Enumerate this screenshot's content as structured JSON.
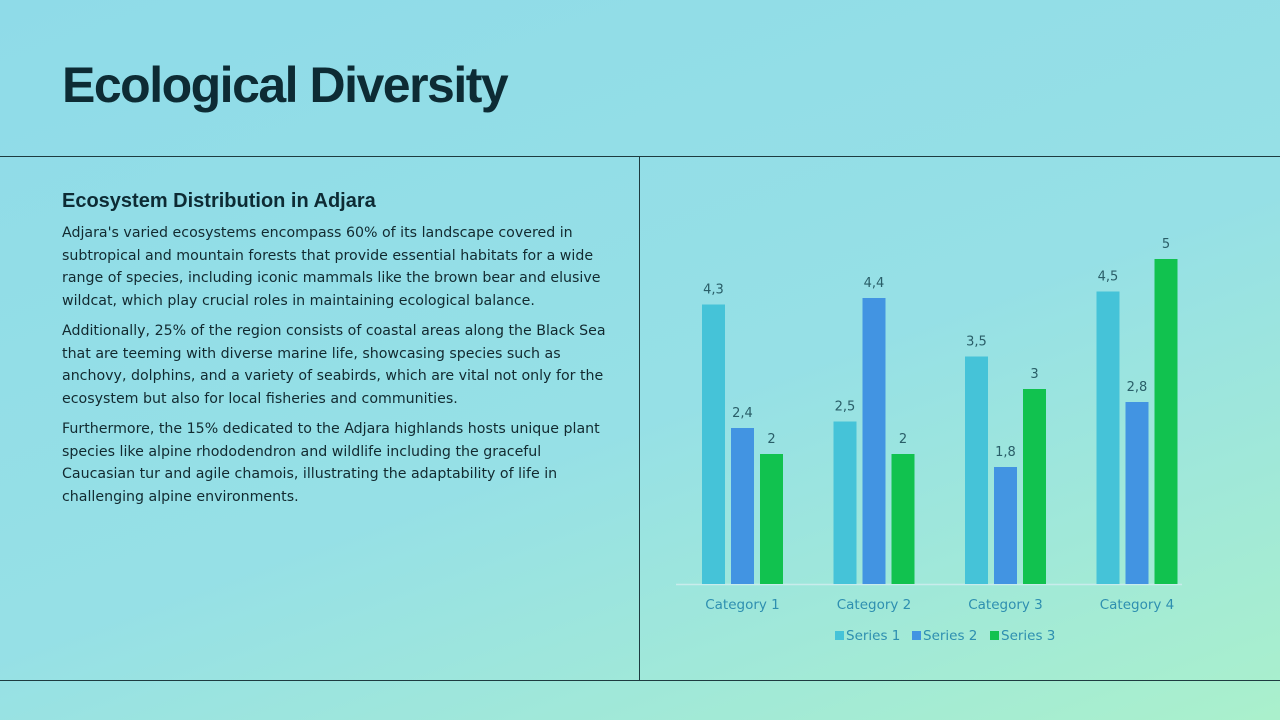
{
  "slide": {
    "title": "Ecological Diversity",
    "subtitle": "Ecosystem Distribution in Adjara",
    "paragraphs": [
      "Adjara's varied ecosystems encompass 60% of its landscape covered in subtropical and mountain forests that provide essential habitats for a wide range of species, including iconic mammals like the brown bear and elusive wildcat, which play crucial roles in maintaining ecological balance.",
      "Additionally, 25% of the region consists of coastal areas along the Black Sea that are teeming with diverse marine life, showcasing species such as anchovy, dolphins, and a variety of seabirds, which are vital not only for the ecosystem but also for local fisheries and communities.",
      "Furthermore, the 15% dedicated to the Adjara highlands hosts unique plant species like alpine rhododendron and wildlife including the graceful Caucasian tur and agile chamois, illustrating the adaptability of life in challenging alpine environments."
    ]
  },
  "chart_data": {
    "type": "bar",
    "title": "",
    "xlabel": "",
    "ylabel": "",
    "categories": [
      "Category 1",
      "Category 2",
      "Category 3",
      "Category 4"
    ],
    "series": [
      {
        "name": "Series 1",
        "color": "#45c3d8",
        "values": [
          4.3,
          2.5,
          3.5,
          4.5
        ],
        "labels": [
          "4,3",
          "2,5",
          "3,5",
          "4,5"
        ]
      },
      {
        "name": "Series 2",
        "color": "#4294e2",
        "values": [
          2.4,
          4.4,
          1.8,
          2.8
        ],
        "labels": [
          "2,4",
          "4,4",
          "1,8",
          "2,8"
        ]
      },
      {
        "name": "Series 3",
        "color": "#11c24f",
        "values": [
          2,
          2,
          3,
          5
        ],
        "labels": [
          "2",
          "2",
          "3",
          "5"
        ]
      }
    ],
    "ylim": [
      0,
      5
    ],
    "grid": false,
    "legend_position": "bottom",
    "category_label_color": "#2e8fb0",
    "data_label_color": "#2a5e68"
  }
}
